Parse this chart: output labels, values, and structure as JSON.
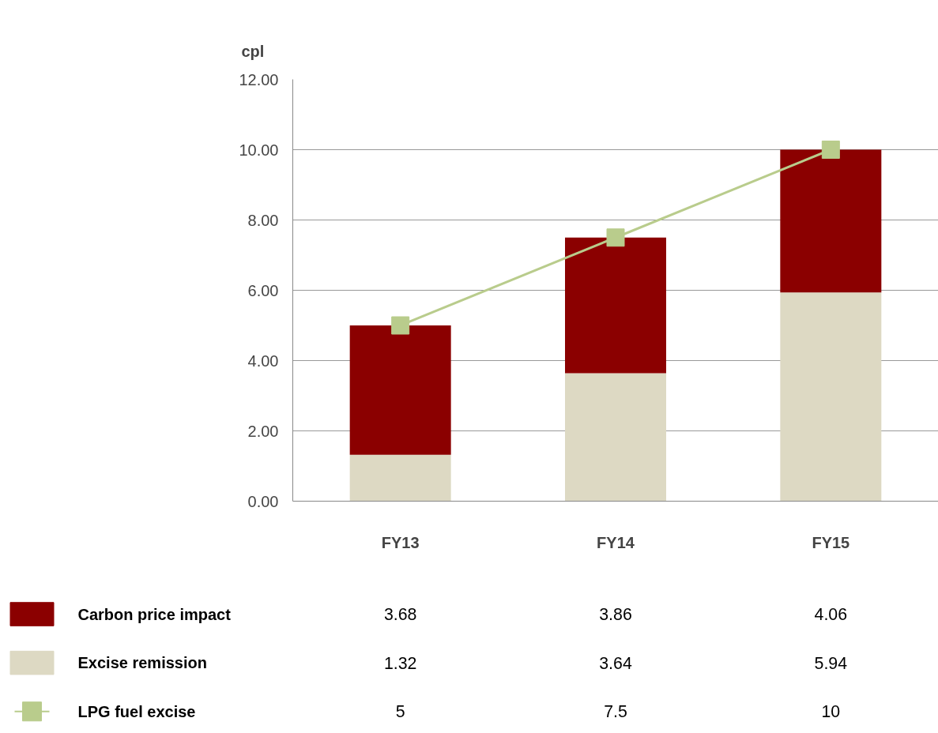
{
  "chart_data": {
    "type": "bar",
    "ylabel": "cpl",
    "stacked": true,
    "categories": [
      "FY13",
      "FY14",
      "FY15"
    ],
    "series": [
      {
        "name": "Excise remission",
        "color": "#ddd9c3",
        "values": [
          1.32,
          3.64,
          5.94
        ]
      },
      {
        "name": "Carbon price impact",
        "color": "#8b0000",
        "values": [
          3.68,
          3.86,
          4.06
        ]
      },
      {
        "name": "LPG fuel excise",
        "type": "line",
        "color": "#b9cc8c",
        "marker": "square",
        "values": [
          5,
          7.5,
          10
        ]
      }
    ],
    "ylim": [
      0,
      12
    ],
    "yticks": [
      {
        "value": 0,
        "label": "0.00"
      },
      {
        "value": 2,
        "label": "2.00"
      },
      {
        "value": 4,
        "label": "4.00"
      },
      {
        "value": 6,
        "label": "6.00"
      },
      {
        "value": 8,
        "label": "8.00"
      },
      {
        "value": 10,
        "label": "10.00"
      },
      {
        "value": 12,
        "label": "12.00"
      }
    ],
    "grid": "y",
    "legend": "bottom left",
    "data_labels": true
  }
}
